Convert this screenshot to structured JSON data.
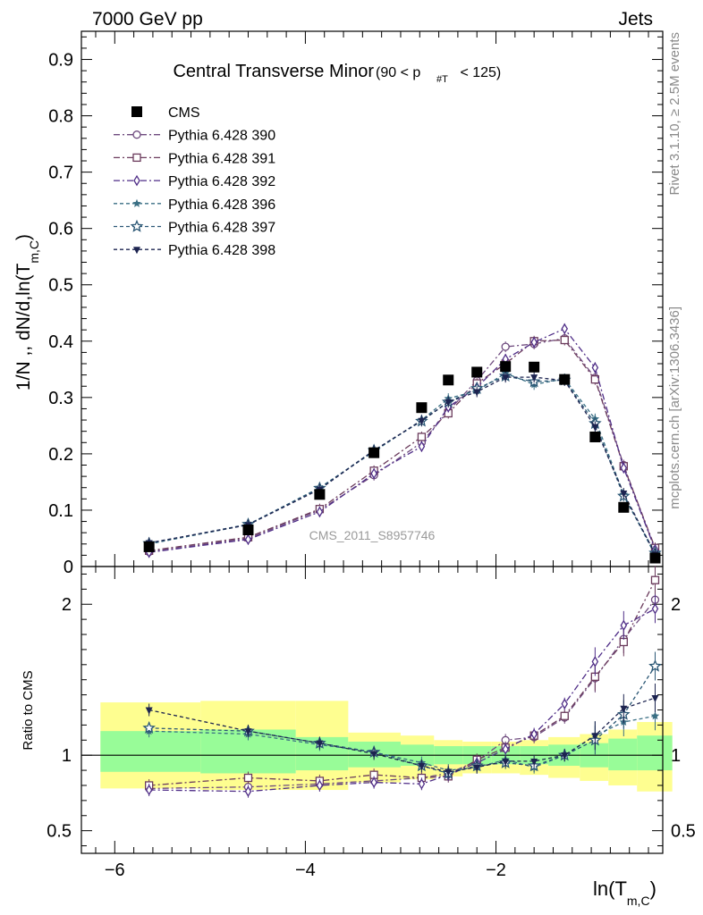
{
  "header": {
    "left": "7000 GeV pp",
    "right": "Jets"
  },
  "side_labels": {
    "rivet": "Rivet 3.1.10, ≥ 2.5M events",
    "mcplots": "mcplots.cern.ch [arXiv:1306.3436]"
  },
  "chart_data": [
    {
      "type": "line",
      "panel": "main",
      "title_main": "Central Transverse Minor",
      "title_cut_prefix": "(90 < p",
      "title_cut_sub": "#T",
      "title_cut_suffix": " < 125)",
      "ylabel_prefix": "1/N",
      "ylabel_middle": " ,, dN/d,ln(T",
      "ylabel_sub": "m,C",
      "ylabel_suffix": ")",
      "xlim": [
        -6.35,
        -0.25
      ],
      "ylim": [
        0,
        0.95
      ],
      "yticks": [
        0,
        0.1,
        0.2,
        0.3,
        0.4,
        0.5,
        0.6,
        0.7,
        0.8,
        0.9
      ],
      "ytick_labels": [
        "0",
        "0.1",
        "0.2",
        "0.3",
        "0.4",
        "0.5",
        "0.6",
        "0.7",
        "0.8",
        "0.9"
      ],
      "watermark": "CMS_2011_S8957746",
      "legend_position": "top-left",
      "x": [
        -5.64,
        -4.6,
        -3.85,
        -3.28,
        -2.78,
        -2.5,
        -2.2,
        -1.9,
        -1.6,
        -1.28,
        -0.96,
        -0.66,
        -0.33
      ],
      "series": [
        {
          "name": "CMS",
          "color": "#000000",
          "marker": "square-filled",
          "dash": "none",
          "values": [
            0.035,
            0.065,
            0.128,
            0.202,
            0.282,
            0.331,
            0.345,
            0.355,
            0.354,
            0.332,
            0.23,
            0.105,
            0.015
          ]
        },
        {
          "name": "Pythia 6.428 390",
          "color": "#6e4a7e",
          "marker": "circle-open",
          "dash": "7,3,2,3",
          "values": [
            0.026,
            0.05,
            0.1,
            0.162,
            0.22,
            0.276,
            0.33,
            0.39,
            0.395,
            0.405,
            0.335,
            0.18,
            0.03
          ]
        },
        {
          "name": "Pythia 6.428 391",
          "color": "#6b3b5c",
          "marker": "square-open",
          "dash": "7,3,2,3",
          "values": [
            0.028,
            0.052,
            0.102,
            0.17,
            0.23,
            0.272,
            0.325,
            0.36,
            0.4,
            0.402,
            0.332,
            0.178,
            0.033
          ]
        },
        {
          "name": "Pythia 6.428 392",
          "color": "#4f2d87",
          "marker": "diamond-open",
          "dash": "7,3,2,3",
          "values": [
            0.025,
            0.048,
            0.097,
            0.165,
            0.213,
            0.283,
            0.318,
            0.368,
            0.398,
            0.422,
            0.353,
            0.175,
            0.03
          ]
        },
        {
          "name": "Pythia 6.428 396",
          "color": "#3a6f84",
          "marker": "star-filled",
          "dash": "4,3",
          "values": [
            0.04,
            0.074,
            0.14,
            0.204,
            0.26,
            0.298,
            0.312,
            0.343,
            0.323,
            0.333,
            0.262,
            0.128,
            0.02
          ]
        },
        {
          "name": "Pythia 6.428 397",
          "color": "#2b5775",
          "marker": "star-open",
          "dash": "4,3",
          "values": [
            0.041,
            0.075,
            0.139,
            0.206,
            0.258,
            0.292,
            0.316,
            0.338,
            0.328,
            0.331,
            0.254,
            0.125,
            0.024
          ]
        },
        {
          "name": "Pythia 6.428 398",
          "color": "#1d2450",
          "marker": "triangle-down-filled",
          "dash": "4,3",
          "values": [
            0.042,
            0.074,
            0.137,
            0.206,
            0.259,
            0.292,
            0.31,
            0.336,
            0.336,
            0.33,
            0.248,
            0.13,
            0.022
          ]
        }
      ]
    },
    {
      "type": "line",
      "panel": "ratio",
      "ylabel": "Ratio to CMS",
      "xlabel_prefix": "ln(T",
      "xlabel_sub": "m,C",
      "xlabel_suffix": ")",
      "ylim": [
        0.35,
        2.25
      ],
      "yticks": [
        0.5,
        1,
        2
      ],
      "ytick_labels": [
        "0.5",
        "1",
        "2"
      ],
      "xticks": [
        -6,
        -4,
        -2
      ],
      "xtick_labels": [
        "−6",
        "−4",
        "−2"
      ],
      "bin_edges": [
        -6.15,
        -5.1,
        -4.1,
        -3.55,
        -3.0,
        -2.65,
        -2.35,
        -2.05,
        -1.75,
        -1.45,
        -1.12,
        -0.82,
        -0.52,
        -0.15
      ],
      "band_inner": [
        [
          0.89,
          1.16
        ],
        [
          0.88,
          1.17
        ],
        [
          0.9,
          1.12
        ],
        [
          0.92,
          1.09
        ],
        [
          0.93,
          1.07
        ],
        [
          0.94,
          1.06
        ],
        [
          0.94,
          1.06
        ],
        [
          0.94,
          1.06
        ],
        [
          0.94,
          1.06
        ],
        [
          0.93,
          1.07
        ],
        [
          0.92,
          1.08
        ],
        [
          0.9,
          1.11
        ],
        [
          0.9,
          1.13
        ]
      ],
      "band_outer": [
        [
          0.78,
          1.35
        ],
        [
          0.77,
          1.36
        ],
        [
          0.77,
          1.36
        ],
        [
          0.82,
          1.15
        ],
        [
          0.84,
          1.13
        ],
        [
          0.86,
          1.1
        ],
        [
          0.88,
          1.09
        ],
        [
          0.88,
          1.09
        ],
        [
          0.87,
          1.1
        ],
        [
          0.85,
          1.12
        ],
        [
          0.83,
          1.14
        ],
        [
          0.8,
          1.17
        ],
        [
          0.76,
          1.22
        ]
      ],
      "series": [
        {
          "name": "Pythia 6.428 390",
          "values": [
            0.78,
            0.79,
            0.81,
            0.83,
            0.85,
            0.88,
            0.96,
            1.1,
            1.12,
            1.25,
            1.51,
            1.77,
            2.03
          ]
        },
        {
          "name": "Pythia 6.428 391",
          "values": [
            0.8,
            0.85,
            0.83,
            0.87,
            0.85,
            0.86,
            0.97,
            1.05,
            1.13,
            1.26,
            1.52,
            1.75,
            2.16
          ]
        },
        {
          "name": "Pythia 6.428 392",
          "values": [
            0.77,
            0.76,
            0.8,
            0.82,
            0.81,
            0.87,
            0.95,
            1.04,
            1.14,
            1.34,
            1.62,
            1.86,
            1.97
          ]
        },
        {
          "name": "Pythia 6.428 396",
          "values": [
            1.16,
            1.14,
            1.07,
            1.02,
            0.95,
            0.9,
            0.92,
            0.97,
            0.92,
            1.0,
            1.13,
            1.22,
            1.26
          ]
        },
        {
          "name": "Pythia 6.428 397",
          "values": [
            1.18,
            1.16,
            1.08,
            1.02,
            0.93,
            0.88,
            0.93,
            0.95,
            0.93,
            1.0,
            1.1,
            1.27,
            1.59
          ]
        },
        {
          "name": "Pythia 6.428 398",
          "values": [
            1.3,
            1.16,
            1.08,
            1.01,
            0.93,
            0.89,
            0.92,
            0.96,
            0.96,
            1.0,
            1.13,
            1.31,
            1.38
          ]
        }
      ]
    }
  ]
}
